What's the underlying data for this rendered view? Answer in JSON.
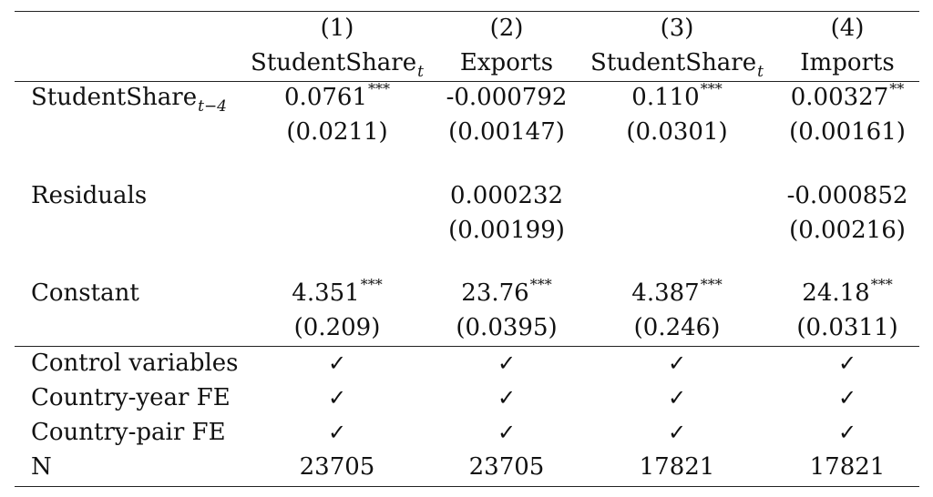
{
  "header": {
    "col_numbers": [
      "(1)",
      "(2)",
      "(3)",
      "(4)"
    ],
    "col_names": [
      {
        "base": "StudentShare",
        "sub": "t"
      },
      {
        "base": "Exports",
        "sub": ""
      },
      {
        "base": "StudentShare",
        "sub": "t"
      },
      {
        "base": "Imports",
        "sub": ""
      }
    ]
  },
  "rows": {
    "studentshare": {
      "label_base": "StudentShare",
      "label_sub": "t−4",
      "coefs": [
        {
          "v": "0.0761",
          "stars": "***"
        },
        {
          "v": "-0.000792",
          "stars": ""
        },
        {
          "v": "0.110",
          "stars": "***"
        },
        {
          "v": "0.00327",
          "stars": "**"
        }
      ],
      "se": [
        "(0.0211)",
        "(0.00147)",
        "(0.0301)",
        "(0.00161)"
      ]
    },
    "residuals": {
      "label": "Residuals",
      "coefs": [
        "",
        "0.000232",
        "",
        "-0.000852"
      ],
      "se": [
        "",
        "(0.00199)",
        "",
        "(0.00216)"
      ]
    },
    "constant": {
      "label": "Constant",
      "coefs": [
        {
          "v": "4.351",
          "stars": "***"
        },
        {
          "v": "23.76",
          "stars": "***"
        },
        {
          "v": "4.387",
          "stars": "***"
        },
        {
          "v": "24.18",
          "stars": "***"
        }
      ],
      "se": [
        "(0.209)",
        "(0.0395)",
        "(0.246)",
        "(0.0311)"
      ]
    }
  },
  "controls": [
    {
      "label": "Control variables",
      "marks": [
        "✓",
        "✓",
        "✓",
        "✓"
      ]
    },
    {
      "label": "Country-year FE",
      "marks": [
        "✓",
        "✓",
        "✓",
        "✓"
      ]
    },
    {
      "label": "Country-pair FE",
      "marks": [
        "✓",
        "✓",
        "✓",
        "✓"
      ]
    }
  ],
  "n_row": {
    "label": "N",
    "values": [
      "23705",
      "23705",
      "17821",
      "17821"
    ]
  }
}
